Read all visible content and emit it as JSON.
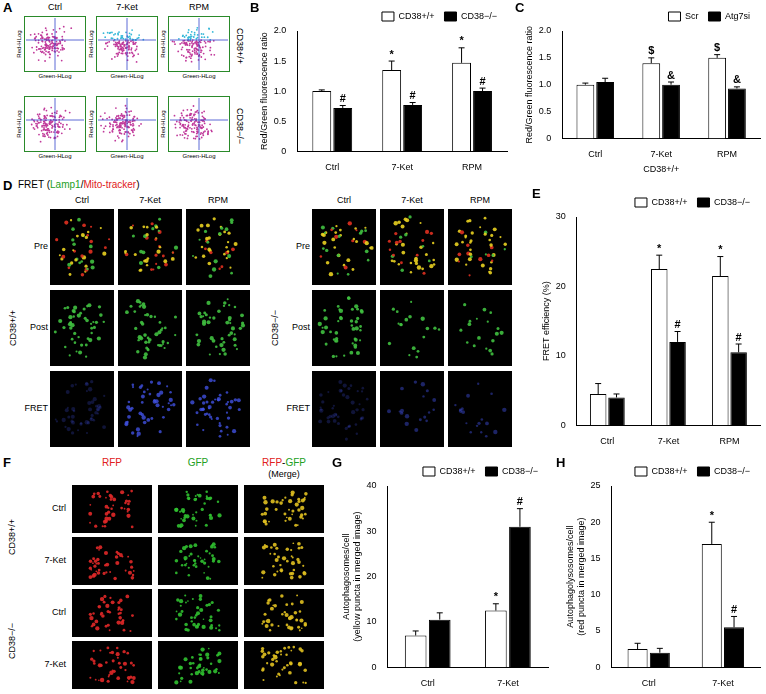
{
  "chart_data": [
    {
      "panel": "B",
      "type": "bar",
      "y_label": "Red/Green fluorescence ratio",
      "categories": [
        "Ctrl",
        "7-Ket",
        "RPM"
      ],
      "series": [
        {
          "name": "CD38+/+",
          "color": "#ffffff",
          "values": [
            1.0,
            1.35,
            1.47
          ],
          "errors": [
            0.02,
            0.15,
            0.25
          ],
          "significance": [
            null,
            "*",
            "*"
          ]
        },
        {
          "name": "CD38−/−",
          "color": "#000000",
          "values": [
            0.72,
            0.77,
            1.0
          ],
          "errors": [
            0.04,
            0.04,
            0.05
          ],
          "significance": [
            "#",
            "#",
            "#"
          ]
        }
      ],
      "ylim": [
        0,
        2
      ],
      "yticks": [
        0,
        0.5,
        {
          "value": 1,
          "label": "1.0"
        },
        1.5,
        {
          "value": 2,
          "label": "2.0"
        }
      ],
      "grid": false,
      "legend": "top-right"
    },
    {
      "panel": "C",
      "type": "bar",
      "y_label": "Red/Green fluorescence ratio",
      "x_label": "CD38+/+",
      "categories": [
        "Ctrl",
        "7-Ket",
        "RPM"
      ],
      "series": [
        {
          "name": "Scr",
          "color": "#ffffff",
          "values": [
            1.0,
            1.4,
            1.5
          ],
          "errors": [
            0.03,
            0.1,
            0.06
          ],
          "significance": [
            null,
            "$",
            "$"
          ]
        },
        {
          "name": "Atg7si",
          "color": "#000000",
          "values": [
            1.05,
            1.0,
            0.93
          ],
          "errors": [
            0.07,
            0.05,
            0.03
          ],
          "significance": [
            null,
            "&",
            "&"
          ]
        }
      ],
      "ylim": [
        0,
        2
      ],
      "yticks": [
        0,
        0.5,
        {
          "value": 1,
          "label": "1.0"
        },
        1.5,
        {
          "value": 2,
          "label": "2.0"
        }
      ],
      "grid": false,
      "legend": "top-right"
    },
    {
      "panel": "E",
      "type": "bar",
      "y_label": "FRET efficiency (%)",
      "categories": [
        "Ctrl",
        "7-Ket",
        "RPM"
      ],
      "series": [
        {
          "name": "CD38+/+",
          "color": "#ffffff",
          "values": [
            4.5,
            22.5,
            21.5
          ],
          "errors": [
            1.5,
            2,
            2.8
          ],
          "significance": [
            null,
            "*",
            "*"
          ]
        },
        {
          "name": "CD38−/−",
          "color": "#000000",
          "values": [
            4,
            12,
            10.5
          ],
          "errors": [
            0.5,
            1.5,
            1.2
          ],
          "significance": [
            null,
            "#",
            "#"
          ]
        }
      ],
      "ylim": [
        0,
        30
      ],
      "yticks": [
        0,
        10,
        20,
        30
      ],
      "grid": false,
      "legend": "top-right"
    },
    {
      "panel": "G",
      "type": "bar",
      "y_label": [
        "Autophagosomes/cell",
        "(yellow puncta in merged image)"
      ],
      "categories": [
        "Ctrl",
        "7-Ket"
      ],
      "series": [
        {
          "name": "CD38+/+",
          "color": "#ffffff",
          "values": [
            7,
            12.5
          ],
          "errors": [
            1,
            1.5
          ],
          "significance": [
            null,
            "*"
          ]
        },
        {
          "name": "CD38−/−",
          "color": "#000000",
          "values": [
            10.5,
            31
          ],
          "errors": [
            1.5,
            4
          ],
          "significance": [
            null,
            "#"
          ]
        }
      ],
      "ylim": [
        0,
        40
      ],
      "yticks": [
        0,
        10,
        20,
        30,
        40
      ],
      "grid": false,
      "legend": "top-right"
    },
    {
      "panel": "H",
      "type": "bar",
      "y_label": [
        "Autophagolysosomes/cell",
        "(red puncta in merged image)"
      ],
      "categories": [
        "Ctrl",
        "7-Ket"
      ],
      "series": [
        {
          "name": "CD38+/+",
          "color": "#ffffff",
          "values": [
            2.5,
            17
          ],
          "errors": [
            0.8,
            3
          ],
          "significance": [
            null,
            "*"
          ]
        },
        {
          "name": "CD38−/−",
          "color": "#000000",
          "values": [
            2,
            5.5
          ],
          "errors": [
            0.6,
            1.5
          ],
          "significance": [
            null,
            "#"
          ]
        }
      ],
      "ylim": [
        0,
        25
      ],
      "yticks": [
        0,
        5,
        10,
        15,
        20,
        25
      ],
      "grid": false,
      "legend": "top-right"
    }
  ],
  "figure_panels": [
    {
      "panel": "A",
      "columns": [
        "Ctrl",
        "7-Ket",
        "RPM"
      ],
      "rows": [
        "CD38+/+",
        "CD38−/−"
      ],
      "x_label": "Green-HLog",
      "y_label": "Red-HLog"
    },
    {
      "panel": "D",
      "title": [
        {
          "text": "FRET (",
          "color": "#000000"
        },
        {
          "text": "Lamp1",
          "color": "#22a022"
        },
        {
          "text": "/",
          "color": "#000000"
        },
        {
          "text": "Mito-tracker",
          "color": "#e02020"
        },
        {
          "text": ")",
          "color": "#000000"
        }
      ],
      "columns": [
        "Ctrl",
        "7-Ket",
        "RPM"
      ],
      "rows": [
        "Pre",
        "Post",
        "FRET"
      ],
      "groups": [
        "CD38+/+",
        "CD38−/−"
      ]
    },
    {
      "panel": "F",
      "columns": [
        [
          {
            "text": "RFP",
            "color": "#e02020"
          }
        ],
        [
          {
            "text": "GFP",
            "color": "#22a022"
          }
        ],
        [
          {
            "text": "RFP",
            "color": "#e02020"
          },
          {
            "text": "-",
            "color": "#000000"
          },
          {
            "text": "GFP",
            "color": "#22a022"
          }
        ]
      ],
      "merge_note": "(Merge)",
      "groups": [
        "CD38+/+",
        "CD38−/−"
      ],
      "rows": [
        "Ctrl",
        "7-Ket"
      ]
    }
  ]
}
